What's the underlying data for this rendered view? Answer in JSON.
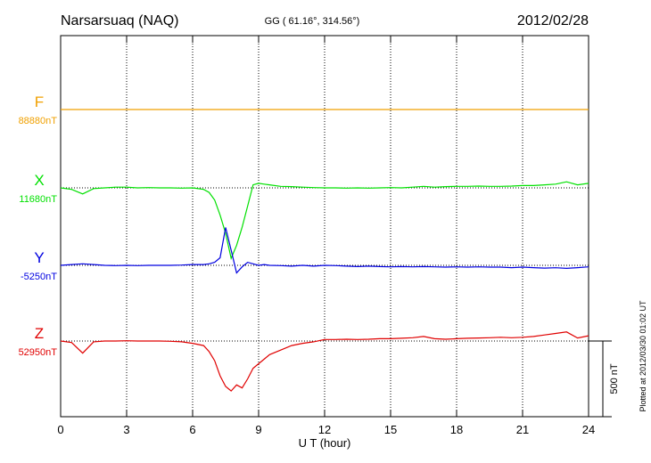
{
  "chart_data": {
    "type": "line",
    "title": "Narsarsuaq (NAQ)",
    "subtitle": "GG ( 61.16°, 314.56°)",
    "date": "2012/02/28",
    "note": "Plotted at 2012/03/30 01:02 UT",
    "xlabel": "U T (hour)",
    "xlim": [
      0,
      24
    ],
    "xticks": [
      0,
      3,
      6,
      9,
      12,
      15,
      18,
      21,
      24
    ],
    "grid": true,
    "scale": {
      "value": 500,
      "label": "500 nT"
    },
    "x": [
      0,
      0.5,
      1,
      1.5,
      2,
      2.5,
      3,
      3.5,
      4,
      4.5,
      5,
      5.5,
      6,
      6.5,
      6.75,
      7,
      7.25,
      7.5,
      7.75,
      8,
      8.25,
      8.5,
      8.75,
      9,
      9.25,
      9.5,
      10,
      10.5,
      11,
      11.5,
      12,
      12.5,
      13,
      13.5,
      14,
      14.5,
      15,
      15.5,
      16,
      16.5,
      17,
      17.5,
      18,
      18.5,
      19,
      19.5,
      20,
      20.5,
      21,
      21.5,
      22,
      22.5,
      23,
      23.5,
      24
    ],
    "series": [
      {
        "name": "F",
        "color": "#f0a000",
        "baseline": {
          "value": 88880,
          "label": "88880nT"
        },
        "values": [
          88880,
          88880,
          88880,
          88880,
          88880,
          88880,
          88880,
          88880,
          88880,
          88880,
          88880,
          88880,
          88880,
          88880,
          88880,
          88880,
          88880,
          88880,
          88880,
          88880,
          88880,
          88880,
          88880,
          88880,
          88880,
          88880,
          88880,
          88880,
          88880,
          88880,
          88880,
          88880,
          88880,
          88880,
          88880,
          88880,
          88880,
          88880,
          88880,
          88880,
          88880,
          88880,
          88880,
          88880,
          88880,
          88880,
          88880,
          88880,
          88880,
          88880,
          88880,
          88880,
          88880,
          88880,
          88880
        ]
      },
      {
        "name": "X",
        "color": "#00e000",
        "baseline": {
          "value": 11680,
          "label": "11680nT"
        },
        "values": [
          11680,
          11670,
          11640,
          11675,
          11680,
          11685,
          11685,
          11680,
          11682,
          11680,
          11680,
          11678,
          11680,
          11670,
          11650,
          11600,
          11500,
          11380,
          11215,
          11300,
          11420,
          11560,
          11700,
          11710,
          11705,
          11700,
          11690,
          11688,
          11685,
          11682,
          11680,
          11680,
          11678,
          11680,
          11678,
          11680,
          11682,
          11680,
          11685,
          11690,
          11685,
          11688,
          11690,
          11690,
          11692,
          11690,
          11690,
          11692,
          11695,
          11695,
          11700,
          11705,
          11720,
          11700,
          11710
        ]
      },
      {
        "name": "Y",
        "color": "#0000e0",
        "baseline": {
          "value": -5250,
          "label": "-5250nT"
        },
        "values": [
          -5250,
          -5245,
          -5240,
          -5245,
          -5250,
          -5252,
          -5250,
          -5252,
          -5250,
          -5250,
          -5250,
          -5248,
          -5245,
          -5245,
          -5240,
          -5230,
          -5200,
          -5000,
          -5150,
          -5300,
          -5260,
          -5230,
          -5240,
          -5250,
          -5245,
          -5250,
          -5252,
          -5255,
          -5250,
          -5255,
          -5250,
          -5252,
          -5255,
          -5258,
          -5255,
          -5258,
          -5260,
          -5258,
          -5260,
          -5258,
          -5260,
          -5262,
          -5260,
          -5262,
          -5260,
          -5262,
          -5262,
          -5265,
          -5262,
          -5265,
          -5268,
          -5266,
          -5270,
          -5265,
          -5260
        ]
      },
      {
        "name": "Z",
        "color": "#e00000",
        "baseline": {
          "value": 52950,
          "label": "52950nT"
        },
        "values": [
          52950,
          52940,
          52870,
          52945,
          52950,
          52950,
          52952,
          52950,
          52950,
          52950,
          52948,
          52945,
          52935,
          52920,
          52880,
          52820,
          52720,
          52650,
          52620,
          52660,
          52640,
          52700,
          52770,
          52800,
          52830,
          52860,
          52890,
          52920,
          52935,
          52945,
          52960,
          52960,
          52962,
          52960,
          52962,
          52965,
          52965,
          52968,
          52972,
          52980,
          52965,
          52962,
          52965,
          52968,
          52970,
          52972,
          52975,
          52972,
          52975,
          52980,
          52990,
          53000,
          53010,
          52970,
          52985
        ]
      }
    ]
  }
}
